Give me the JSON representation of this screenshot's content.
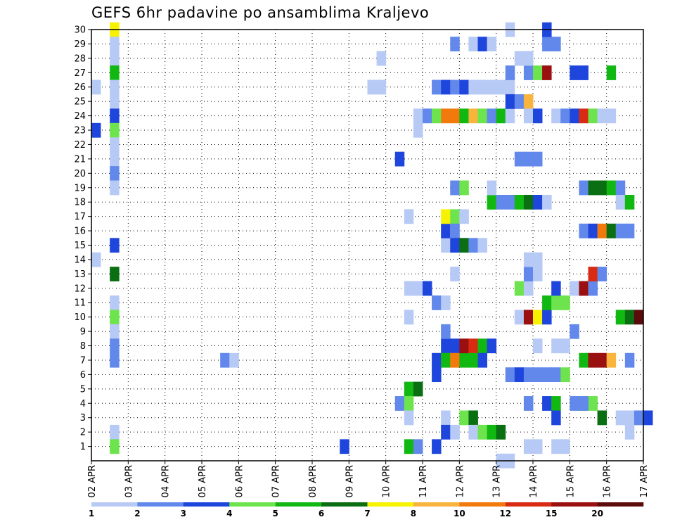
{
  "chart_data": {
    "type": "heatmap",
    "title": "GEFS 6hr padavine po ansamblima Kraljevo",
    "xlabel": "",
    "ylabel": "",
    "x_ticks": [
      "02 APR",
      "03 APR",
      "04 APR",
      "05 APR",
      "06 APR",
      "07 APR",
      "08 APR",
      "09 APR",
      "10 APR",
      "11 APR",
      "12 APR",
      "13 APR",
      "14 APR",
      "15 APR",
      "16 APR",
      "17 APR"
    ],
    "x_steps_per_day": 4,
    "x_range_steps": [
      0,
      60
    ],
    "y_ticks": [
      1,
      2,
      3,
      4,
      5,
      6,
      7,
      8,
      9,
      10,
      11,
      12,
      13,
      14,
      15,
      16,
      17,
      18,
      19,
      20,
      21,
      22,
      23,
      24,
      25,
      26,
      27,
      28,
      29,
      30
    ],
    "y_range": [
      0,
      30
    ],
    "grid": true,
    "colorbar": {
      "position": "bottom",
      "colors": [
        "#b7c9f5",
        "#6188ea",
        "#1e46dc",
        "#6de44d",
        "#12b812",
        "#0a6e12",
        "#f7f200",
        "#f9b43e",
        "#f27a0c",
        "#d92a12",
        "#9a0f0f",
        "#5c0a0a"
      ],
      "labels": [
        "1",
        "2",
        "3",
        "4",
        "5",
        "6",
        "7",
        "8",
        "10",
        "12",
        "15",
        "20"
      ]
    },
    "cells": [
      [
        30,
        2,
        6
      ],
      [
        29,
        2,
        0
      ],
      [
        28,
        2,
        0
      ],
      [
        27,
        2,
        4
      ],
      [
        26,
        2,
        0
      ],
      [
        25,
        2,
        0
      ],
      [
        24,
        2,
        2
      ],
      [
        23,
        2,
        3
      ],
      [
        22,
        2,
        0
      ],
      [
        21,
        2,
        0
      ],
      [
        20,
        2,
        1
      ],
      [
        19,
        2,
        0
      ],
      [
        15,
        2,
        2
      ],
      [
        13,
        2,
        5
      ],
      [
        11,
        2,
        0
      ],
      [
        10,
        2,
        3
      ],
      [
        9,
        2,
        0
      ],
      [
        8,
        2,
        1
      ],
      [
        7,
        2,
        1
      ],
      [
        2,
        2,
        0
      ],
      [
        1,
        2,
        3
      ],
      [
        26,
        0,
        0
      ],
      [
        23,
        0,
        2
      ],
      [
        14,
        0,
        0
      ],
      [
        7,
        14,
        1
      ],
      [
        7,
        15,
        0
      ],
      [
        1,
        27,
        2
      ],
      [
        28,
        31,
        0
      ],
      [
        26,
        30,
        0
      ],
      [
        26,
        31,
        0
      ],
      [
        21,
        33,
        2
      ],
      [
        24,
        35,
        0
      ],
      [
        24,
        36,
        1
      ],
      [
        23,
        35,
        0
      ],
      [
        17,
        34,
        0
      ],
      [
        12,
        34,
        0
      ],
      [
        12,
        35,
        0
      ],
      [
        12,
        36,
        2
      ],
      [
        10,
        34,
        0
      ],
      [
        5,
        34,
        4
      ],
      [
        5,
        35,
        5
      ],
      [
        4,
        33,
        1
      ],
      [
        4,
        34,
        3
      ],
      [
        3,
        34,
        0
      ],
      [
        1,
        34,
        4
      ],
      [
        1,
        35,
        1
      ],
      [
        1,
        37,
        2
      ],
      [
        26,
        37,
        1
      ],
      [
        26,
        38,
        2
      ],
      [
        11,
        37,
        1
      ],
      [
        11,
        38,
        0
      ],
      [
        7,
        37,
        2
      ],
      [
        8,
        38,
        2
      ],
      [
        8,
        39,
        2
      ],
      [
        7,
        38,
        4
      ],
      [
        7,
        39,
        8
      ],
      [
        7,
        40,
        4
      ],
      [
        6,
        37,
        2
      ],
      [
        3,
        38,
        0
      ],
      [
        2,
        38,
        2
      ],
      [
        2,
        39,
        0
      ],
      [
        15,
        38,
        0
      ],
      [
        16,
        38,
        2
      ],
      [
        16,
        39,
        0
      ],
      [
        17,
        38,
        6
      ],
      [
        17,
        39,
        3
      ],
      [
        17,
        40,
        0
      ],
      [
        16,
        39,
        1
      ],
      [
        15,
        39,
        2
      ],
      [
        15,
        40,
        5
      ],
      [
        15,
        41,
        1
      ],
      [
        15,
        42,
        0
      ],
      [
        19,
        39,
        1
      ],
      [
        19,
        40,
        3
      ],
      [
        9,
        38,
        1
      ],
      [
        8,
        40,
        10
      ],
      [
        8,
        41,
        9
      ],
      [
        8,
        42,
        4
      ],
      [
        8,
        43,
        2
      ],
      [
        7,
        41,
        4
      ],
      [
        7,
        42,
        2
      ],
      [
        3,
        40,
        3
      ],
      [
        3,
        41,
        5
      ],
      [
        2,
        41,
        0
      ],
      [
        2,
        42,
        3
      ],
      [
        2,
        43,
        4
      ],
      [
        2,
        44,
        5
      ],
      [
        13,
        39,
        0
      ],
      [
        29,
        39,
        1
      ],
      [
        29,
        41,
        0
      ],
      [
        29,
        42,
        2
      ],
      [
        29,
        43,
        0
      ],
      [
        26,
        39,
        1
      ],
      [
        26,
        40,
        2
      ],
      [
        26,
        41,
        0
      ],
      [
        26,
        42,
        0
      ],
      [
        26,
        43,
        0
      ],
      [
        26,
        44,
        0
      ],
      [
        26,
        45,
        0
      ],
      [
        24,
        37,
        3
      ],
      [
        24,
        38,
        8
      ],
      [
        24,
        39,
        8
      ],
      [
        24,
        40,
        4
      ],
      [
        24,
        41,
        7
      ],
      [
        24,
        42,
        3
      ],
      [
        24,
        43,
        1
      ],
      [
        24,
        44,
        4
      ],
      [
        24,
        45,
        0
      ],
      [
        25,
        45,
        2
      ],
      [
        25,
        46,
        1
      ],
      [
        25,
        47,
        7
      ],
      [
        24,
        47,
        0
      ],
      [
        24,
        48,
        2
      ],
      [
        24,
        50,
        0
      ],
      [
        24,
        51,
        1
      ],
      [
        24,
        52,
        2
      ],
      [
        24,
        53,
        9
      ],
      [
        24,
        54,
        3
      ],
      [
        24,
        55,
        0
      ],
      [
        24,
        56,
        0
      ],
      [
        27,
        45,
        1
      ],
      [
        27,
        47,
        1
      ],
      [
        27,
        48,
        3
      ],
      [
        27,
        49,
        10
      ],
      [
        27,
        52,
        2
      ],
      [
        27,
        53,
        2
      ],
      [
        27,
        56,
        4
      ],
      [
        28,
        46,
        0
      ],
      [
        28,
        47,
        0
      ],
      [
        29,
        49,
        1
      ],
      [
        29,
        50,
        1
      ],
      [
        30,
        45,
        0
      ],
      [
        30,
        49,
        2
      ],
      [
        18,
        43,
        4
      ],
      [
        18,
        44,
        1
      ],
      [
        18,
        45,
        1
      ],
      [
        18,
        46,
        4
      ],
      [
        18,
        47,
        5
      ],
      [
        18,
        48,
        2
      ],
      [
        18,
        49,
        0
      ],
      [
        19,
        43,
        0
      ],
      [
        21,
        46,
        1
      ],
      [
        21,
        47,
        1
      ],
      [
        21,
        48,
        1
      ],
      [
        6,
        45,
        1
      ],
      [
        6,
        46,
        2
      ],
      [
        6,
        47,
        1
      ],
      [
        6,
        48,
        1
      ],
      [
        6,
        49,
        1
      ],
      [
        6,
        50,
        1
      ],
      [
        6,
        51,
        3
      ],
      [
        10,
        46,
        0
      ],
      [
        10,
        47,
        10
      ],
      [
        10,
        48,
        6
      ],
      [
        10,
        49,
        2
      ],
      [
        11,
        49,
        4
      ],
      [
        11,
        50,
        3
      ],
      [
        11,
        51,
        3
      ],
      [
        12,
        46,
        3
      ],
      [
        12,
        47,
        0
      ],
      [
        12,
        50,
        2
      ],
      [
        13,
        47,
        1
      ],
      [
        13,
        48,
        0
      ],
      [
        14,
        47,
        0
      ],
      [
        14,
        48,
        0
      ],
      [
        8,
        48,
        0
      ],
      [
        8,
        50,
        0
      ],
      [
        8,
        51,
        0
      ],
      [
        4,
        47,
        1
      ],
      [
        4,
        49,
        2
      ],
      [
        4,
        50,
        4
      ],
      [
        4,
        52,
        1
      ],
      [
        4,
        53,
        3
      ],
      [
        4,
        54,
        3
      ],
      [
        3,
        50,
        2
      ],
      [
        1,
        47,
        0
      ],
      [
        1,
        48,
        0
      ],
      [
        1,
        50,
        0
      ],
      [
        1,
        51,
        0
      ],
      [
        0,
        44,
        0
      ],
      [
        0,
        45,
        0
      ],
      [
        16,
        53,
        1
      ],
      [
        16,
        54,
        2
      ],
      [
        16,
        55,
        8
      ],
      [
        16,
        56,
        5
      ],
      [
        16,
        57,
        1
      ],
      [
        16,
        58,
        1
      ],
      [
        19,
        53,
        1
      ],
      [
        19,
        54,
        5
      ],
      [
        19,
        55,
        5
      ],
      [
        19,
        56,
        4
      ],
      [
        19,
        57,
        1
      ],
      [
        18,
        57,
        0
      ],
      [
        18,
        58,
        4
      ],
      [
        12,
        52,
        0
      ],
      [
        12,
        53,
        10
      ],
      [
        12,
        54,
        1
      ],
      [
        13,
        54,
        9
      ],
      [
        13,
        55,
        1
      ],
      [
        9,
        52,
        1
      ],
      [
        7,
        53,
        4
      ],
      [
        7,
        54,
        10
      ],
      [
        7,
        55,
        10
      ],
      [
        7,
        56,
        7
      ],
      [
        7,
        58,
        1
      ],
      [
        10,
        57,
        4
      ],
      [
        10,
        58,
        5
      ],
      [
        10,
        59,
        11
      ],
      [
        3,
        55,
        5
      ],
      [
        3,
        57,
        0
      ],
      [
        3,
        58,
        0
      ],
      [
        3,
        59,
        1
      ],
      [
        3,
        60,
        2
      ],
      [
        4,
        53,
        1
      ],
      [
        2,
        58,
        0
      ]
    ]
  }
}
